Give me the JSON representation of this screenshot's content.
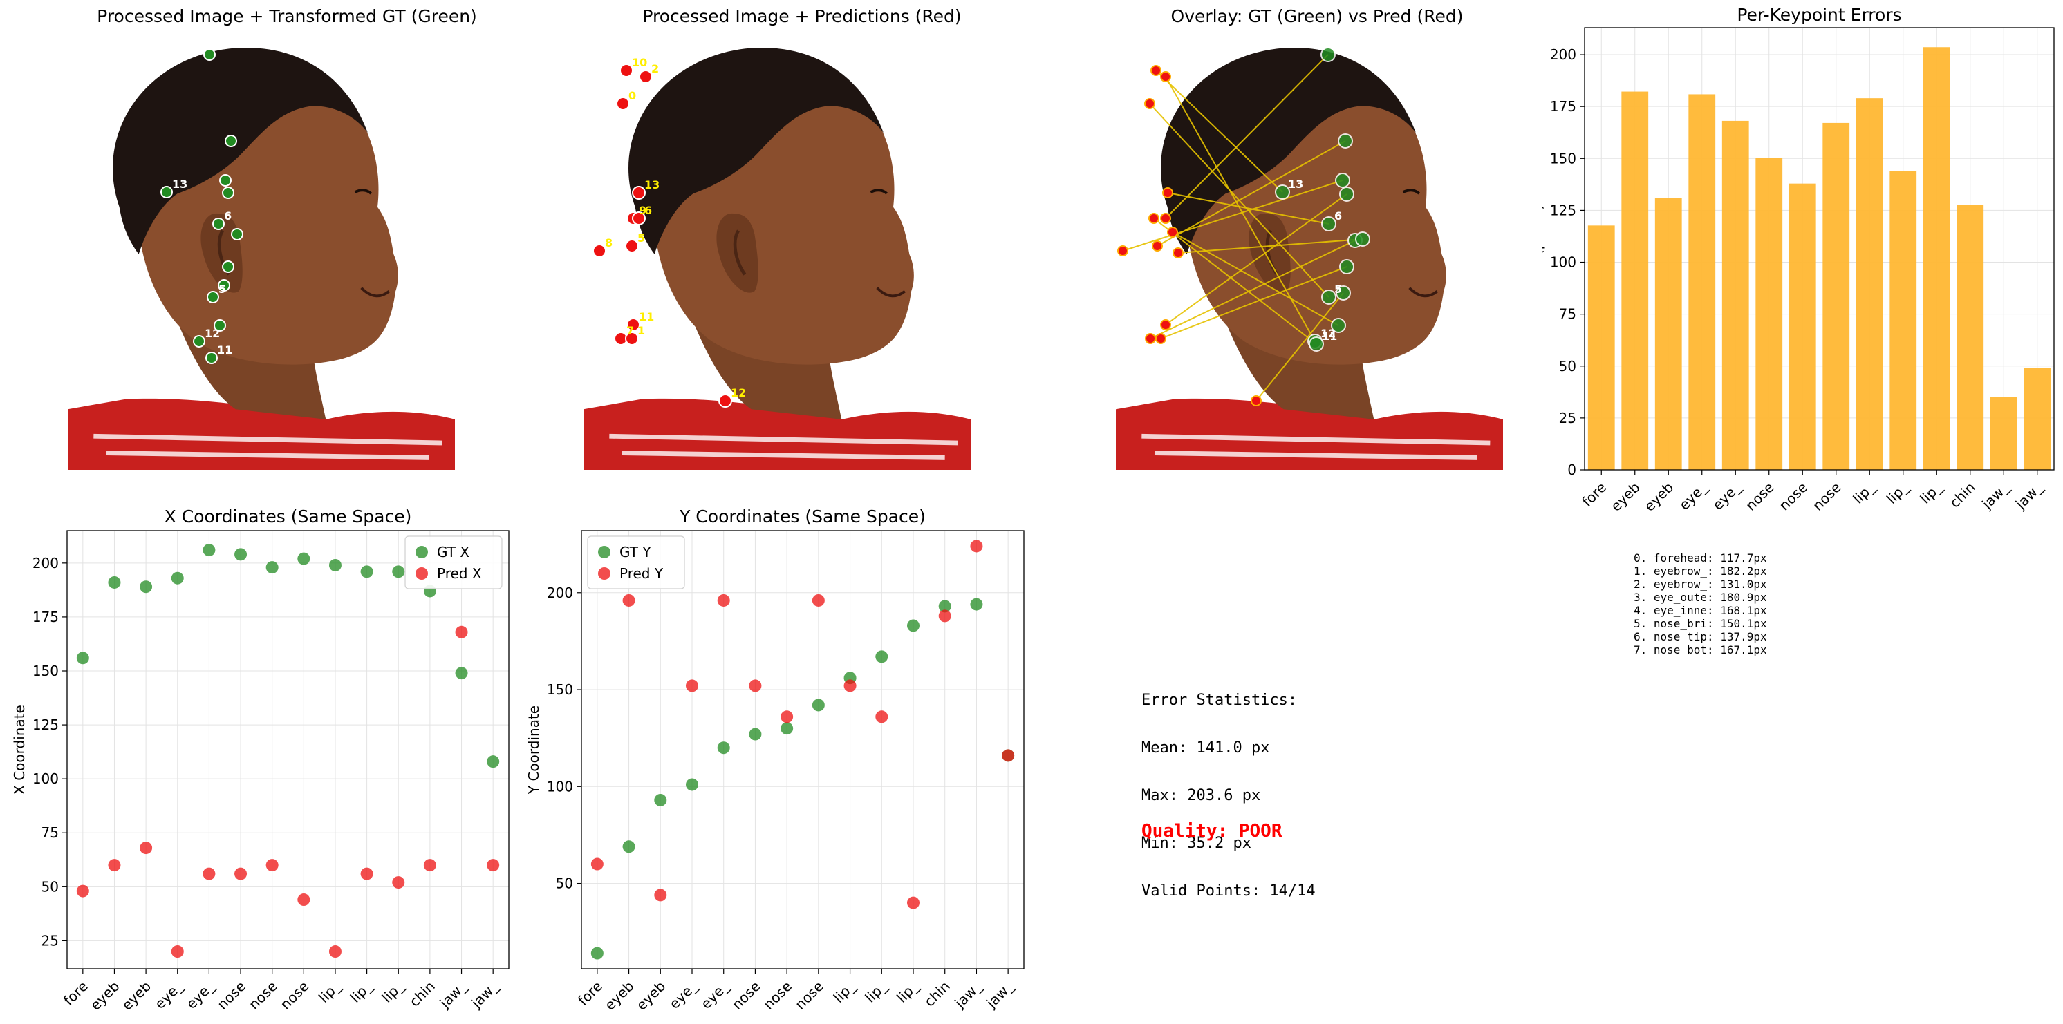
{
  "panels": {
    "gt_title": "Processed Image + Transformed GT (Green)",
    "pred_title": "Processed Image + Predictions (Red)",
    "overlay_title": "Overlay: GT (Green) vs Pred (Red)"
  },
  "colors": {
    "gt": "#228b22",
    "pred": "#ee1111",
    "bar": "#ffb733",
    "line": "#e6c200",
    "label": "#ffee00",
    "quality": "#ff0000"
  },
  "keypoint_labels": {
    "gt": [
      "13",
      "12",
      "5",
      "6",
      "11"
    ],
    "pred": [
      "10",
      "2",
      "0",
      "13",
      "9",
      "6",
      "5",
      "8",
      "11",
      "7",
      "1",
      "12"
    ],
    "overlay": [
      "13",
      "12",
      "5",
      "6",
      "11"
    ]
  },
  "chart_data": [
    {
      "type": "bar",
      "title": "Per-Keypoint Errors",
      "xlabel": "",
      "ylabel": "Error (pixels)",
      "categories": [
        "fore",
        "eyeb",
        "eyeb",
        "eye_",
        "eye_",
        "nose",
        "nose",
        "nose",
        "lip_",
        "lip_",
        "lip_",
        "chin",
        "jaw_",
        "jaw_"
      ],
      "values": [
        117.7,
        182.2,
        131.0,
        180.9,
        168.1,
        150.1,
        137.9,
        167.1,
        179,
        144,
        203.6,
        127.5,
        35.2,
        49
      ],
      "ylim": [
        0,
        213
      ],
      "yticks": [
        "0",
        "25",
        "50",
        "75",
        "100",
        "125",
        "150",
        "175",
        "200"
      ],
      "grid": true
    },
    {
      "type": "scatter",
      "title": "X Coordinates (Same Space)",
      "xlabel": "",
      "ylabel": "X Coordinate",
      "categories": [
        "fore",
        "eyeb",
        "eyeb",
        "eye_",
        "eye_",
        "nose",
        "nose",
        "nose",
        "lip_",
        "lip_",
        "lip_",
        "chin",
        "jaw_",
        "jaw_"
      ],
      "series": [
        {
          "name": "GT X",
          "values": [
            156,
            191,
            189,
            193,
            206,
            204,
            198,
            202,
            199,
            196,
            196,
            187,
            149,
            108
          ]
        },
        {
          "name": "Pred X",
          "values": [
            48,
            60,
            68,
            20,
            56,
            56,
            60,
            44,
            20,
            56,
            52,
            60,
            168,
            60
          ]
        }
      ],
      "ylim": [
        12,
        215
      ],
      "yticks": [
        "25",
        "50",
        "75",
        "100",
        "125",
        "150",
        "175",
        "200"
      ],
      "legend": "top-right",
      "grid": true
    },
    {
      "type": "scatter",
      "title": "Y Coordinates (Same Space)",
      "xlabel": "",
      "ylabel": "Y Coordinate",
      "categories": [
        "fore",
        "eyeb",
        "eyeb",
        "eye_",
        "eye_",
        "nose",
        "nose",
        "nose",
        "lip_",
        "lip_",
        "lip_",
        "chin",
        "jaw_",
        "jaw_"
      ],
      "series": [
        {
          "name": "GT Y",
          "values": [
            14,
            69,
            93,
            101,
            120,
            127,
            130,
            142,
            156,
            167,
            183,
            193,
            194,
            116
          ]
        },
        {
          "name": "Pred Y",
          "values": [
            60,
            196,
            44,
            152,
            196,
            152,
            136,
            196,
            152,
            136,
            40,
            188,
            224,
            116
          ]
        }
      ],
      "ylim": [
        6,
        232
      ],
      "yticks": [
        "50",
        "100",
        "150",
        "200"
      ],
      "legend": "top-left",
      "grid": true
    }
  ],
  "stats": {
    "heading": "Error Statistics:",
    "mean": "Mean: 141.0 px",
    "max": "Max: 203.6 px",
    "min": "Min: 35.2 px",
    "valid": "Valid Points: 14/14",
    "quality": "Quality: POOR"
  },
  "error_list": [
    "0. forehead: 117.7px",
    "1. eyebrow_: 182.2px",
    "2. eyebrow_: 131.0px",
    "3. eye_oute: 180.9px",
    "4. eye_inne: 168.1px",
    "5. nose_bri: 150.1px",
    "6. nose_tip: 137.9px",
    "7. nose_bot: 167.1px"
  ]
}
